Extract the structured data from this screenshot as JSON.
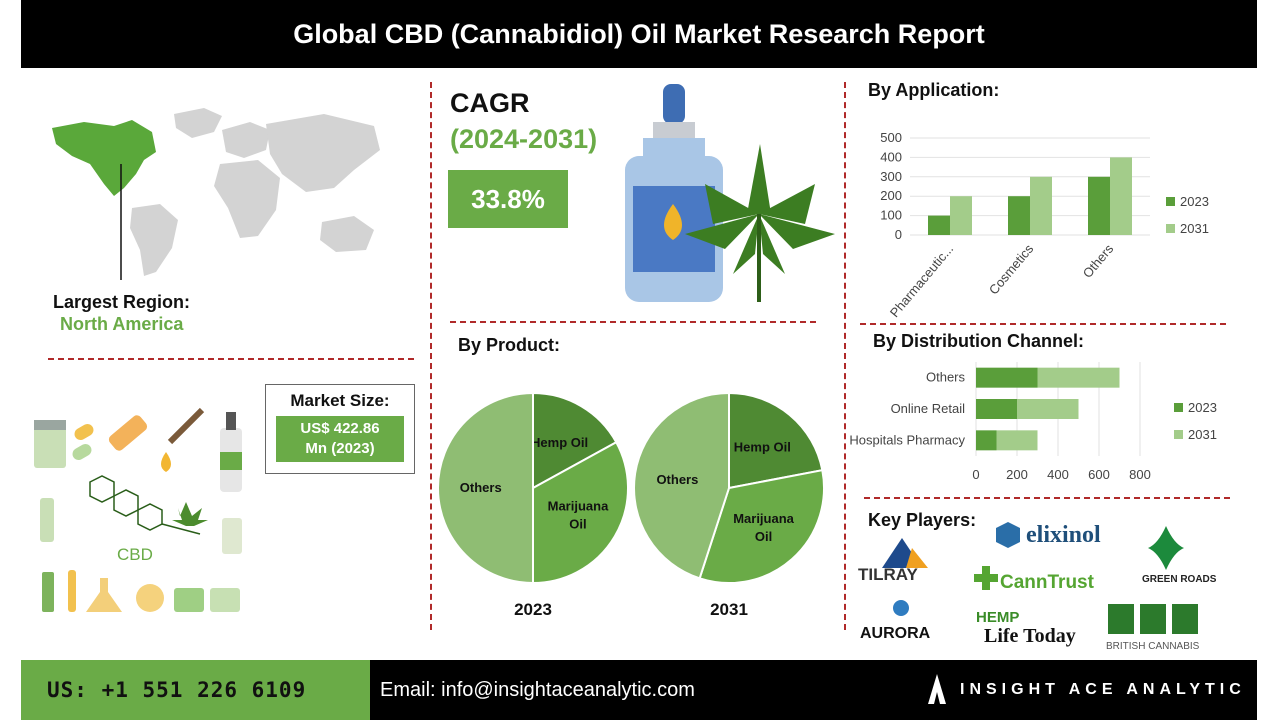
{
  "header": {
    "title": "Global CBD (Cannabidiol) Oil Market Research Report"
  },
  "region": {
    "label": "Largest Region:",
    "value": "North America"
  },
  "cagr": {
    "label": "CAGR",
    "period": "(2024-2031)",
    "value": "33.8%"
  },
  "market_size": {
    "label": "Market Size:",
    "line1": "US$ 422.86",
    "line2": "Mn (2023)"
  },
  "product": {
    "title": "By Product:"
  },
  "application": {
    "title": "By Application:"
  },
  "distribution": {
    "title": "By  Distribution Channel:"
  },
  "key_players": {
    "title": "Key Players:",
    "names": [
      "TILRAY",
      "elixinol",
      "CannTrust",
      "GREEN ROADS",
      "AURORA",
      "HEMP Life Today",
      "BRITISH CANNABIS"
    ]
  },
  "illustration": {
    "cbd_label": "CBD"
  },
  "footer": {
    "phone": "US: +1 551 226 6109",
    "email": "Email: info@insightaceanalytic.com",
    "brand": "INSIGHT ACE ANALYTIC"
  },
  "colors": {
    "dark_green": "#5a9e3a",
    "light_green": "#a3cc8a",
    "accent": "#6aab47",
    "divider": "#b02a2a"
  },
  "chart_data": [
    {
      "type": "bar",
      "title": "By Application:",
      "categories": [
        "Pharmaceutic...",
        "Cosmetics",
        "Others"
      ],
      "series": [
        {
          "name": "2023",
          "values": [
            100,
            200,
            300
          ]
        },
        {
          "name": "2031",
          "values": [
            200,
            300,
            400
          ]
        }
      ],
      "ylim": [
        0,
        500
      ],
      "yticks": [
        "0",
        "100",
        "200",
        "300",
        "400",
        "500"
      ],
      "legend": "right"
    },
    {
      "type": "bar",
      "orientation": "horizontal",
      "stacked": true,
      "title": "By  Distribution Channel:",
      "categories": [
        "Hospitals Pharmacy",
        "Online Retail",
        "Others"
      ],
      "series": [
        {
          "name": "2023",
          "values": [
            100,
            200,
            300
          ]
        },
        {
          "name": "2031",
          "values": [
            200,
            300,
            400
          ]
        }
      ],
      "xlim": [
        0,
        800
      ],
      "xticks": [
        "0",
        "200",
        "400",
        "600",
        "800"
      ],
      "legend": "right"
    },
    {
      "type": "pie",
      "title": "2023",
      "slices": [
        {
          "label": "Hemp Oil",
          "value": 17
        },
        {
          "label": "Marijuana Oil",
          "value": 33
        },
        {
          "label": "Others",
          "value": 50
        }
      ]
    },
    {
      "type": "pie",
      "title": "2031",
      "slices": [
        {
          "label": "Hemp Oil",
          "value": 22
        },
        {
          "label": "Marijuana Oil",
          "value": 33
        },
        {
          "label": "Others",
          "value": 45
        }
      ]
    }
  ]
}
